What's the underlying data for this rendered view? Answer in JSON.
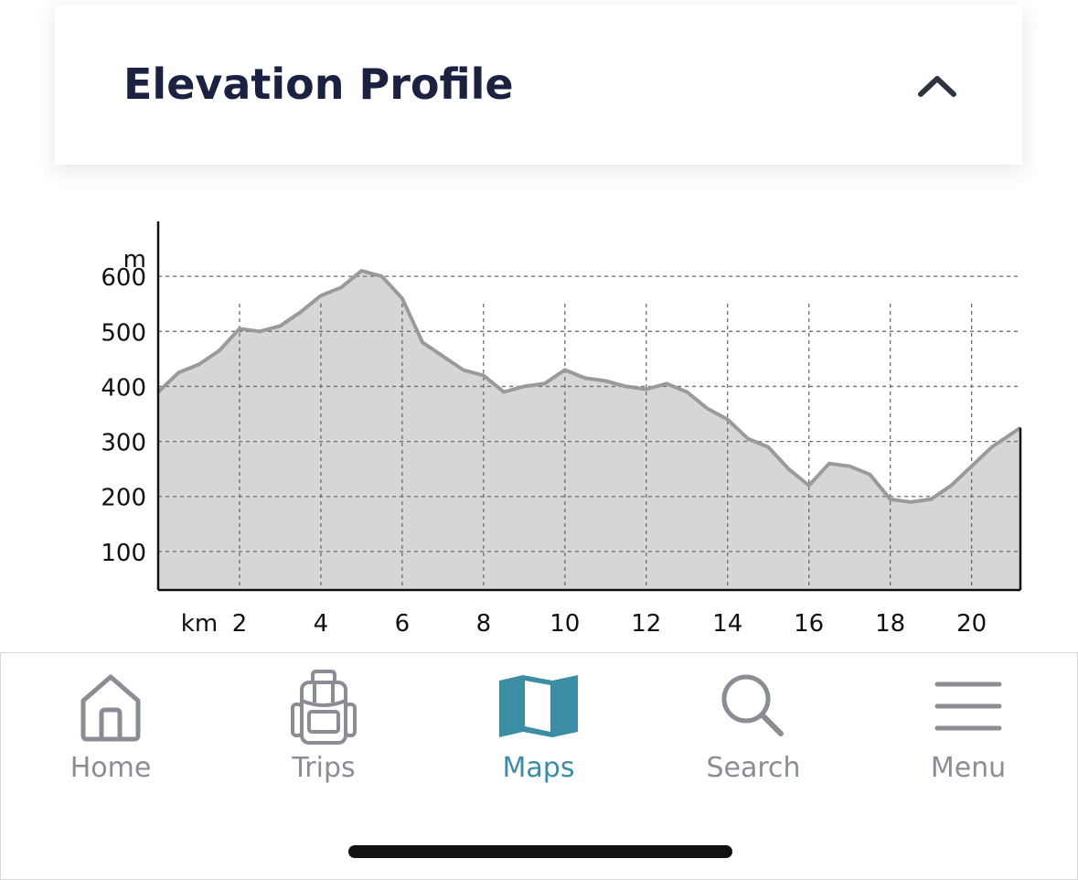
{
  "header": {
    "title": "Elevation Profile",
    "collapse_icon": "chevron-up-icon"
  },
  "chart_data": {
    "type": "area",
    "title": "",
    "xlabel": "km",
    "ylabel": "m",
    "x_ticks": [
      2,
      4,
      6,
      8,
      10,
      12,
      14,
      16,
      18,
      20
    ],
    "y_ticks": [
      100,
      200,
      300,
      400,
      500,
      600
    ],
    "xlim": [
      0,
      21.2
    ],
    "ylim": [
      30,
      700
    ],
    "grid": true,
    "fill_color": "#d6d6d6",
    "line_color": "#9a9a9a",
    "series": [
      {
        "x": [
          0,
          0.5,
          1,
          1.5,
          2,
          2.5,
          3,
          3.5,
          4,
          4.5,
          5,
          5.5,
          6,
          6.5,
          7,
          7.5,
          8,
          8.5,
          9,
          9.5,
          10,
          10.5,
          11,
          11.5,
          12,
          12.5,
          13,
          13.5,
          14,
          14.5,
          15,
          15.5,
          16,
          16.5,
          17,
          17.5,
          18,
          18.5,
          19,
          19.5,
          20,
          20.5,
          21.2
        ],
        "y": [
          390,
          425,
          440,
          465,
          505,
          500,
          510,
          535,
          565,
          580,
          610,
          600,
          560,
          480,
          455,
          430,
          420,
          390,
          400,
          405,
          430,
          415,
          410,
          400,
          395,
          405,
          390,
          360,
          340,
          305,
          290,
          250,
          220,
          260,
          255,
          240,
          195,
          190,
          195,
          220,
          255,
          290,
          325
        ]
      }
    ]
  },
  "nav": {
    "items": [
      {
        "label": "Home",
        "icon": "home-icon"
      },
      {
        "label": "Trips",
        "icon": "backpack-icon"
      },
      {
        "label": "Maps",
        "icon": "map-icon",
        "active": true
      },
      {
        "label": "Search",
        "icon": "search-icon"
      },
      {
        "label": "Menu",
        "icon": "menu-icon"
      }
    ],
    "active_color": "#3b8da3",
    "inactive_color": "#8a8e94"
  }
}
